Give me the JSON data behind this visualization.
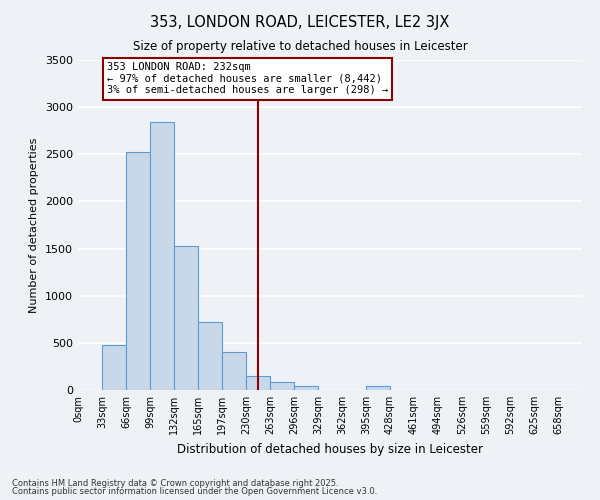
{
  "title": "353, LONDON ROAD, LEICESTER, LE2 3JX",
  "subtitle": "Size of property relative to detached houses in Leicester",
  "xlabel": "Distribution of detached houses by size in Leicester",
  "ylabel": "Number of detached properties",
  "bar_labels": [
    "0sqm",
    "33sqm",
    "66sqm",
    "99sqm",
    "132sqm",
    "165sqm",
    "197sqm",
    "230sqm",
    "263sqm",
    "296sqm",
    "329sqm",
    "362sqm",
    "395sqm",
    "428sqm",
    "461sqm",
    "494sqm",
    "526sqm",
    "559sqm",
    "592sqm",
    "625sqm",
    "658sqm"
  ],
  "bar_values": [
    0,
    475,
    2520,
    2840,
    1530,
    720,
    400,
    150,
    80,
    45,
    0,
    0,
    45,
    0,
    0,
    0,
    0,
    0,
    0,
    0,
    0
  ],
  "bar_color": "#c8d8e8",
  "bar_edge_color": "#5b9bd5",
  "ylim": [
    0,
    3500
  ],
  "yticks": [
    0,
    500,
    1000,
    1500,
    2000,
    2500,
    3000,
    3500
  ],
  "vline_x": 7.5,
  "annotation_title": "353 LONDON ROAD: 232sqm",
  "annotation_line1": "← 97% of detached houses are smaller (8,442)",
  "annotation_line2": "3% of semi-detached houses are larger (298) →",
  "annotation_box_color": "#8b0000",
  "background_color": "#eef2f7",
  "grid_color": "#ffffff",
  "footnote1": "Contains HM Land Registry data © Crown copyright and database right 2025.",
  "footnote2": "Contains public sector information licensed under the Open Government Licence v3.0."
}
